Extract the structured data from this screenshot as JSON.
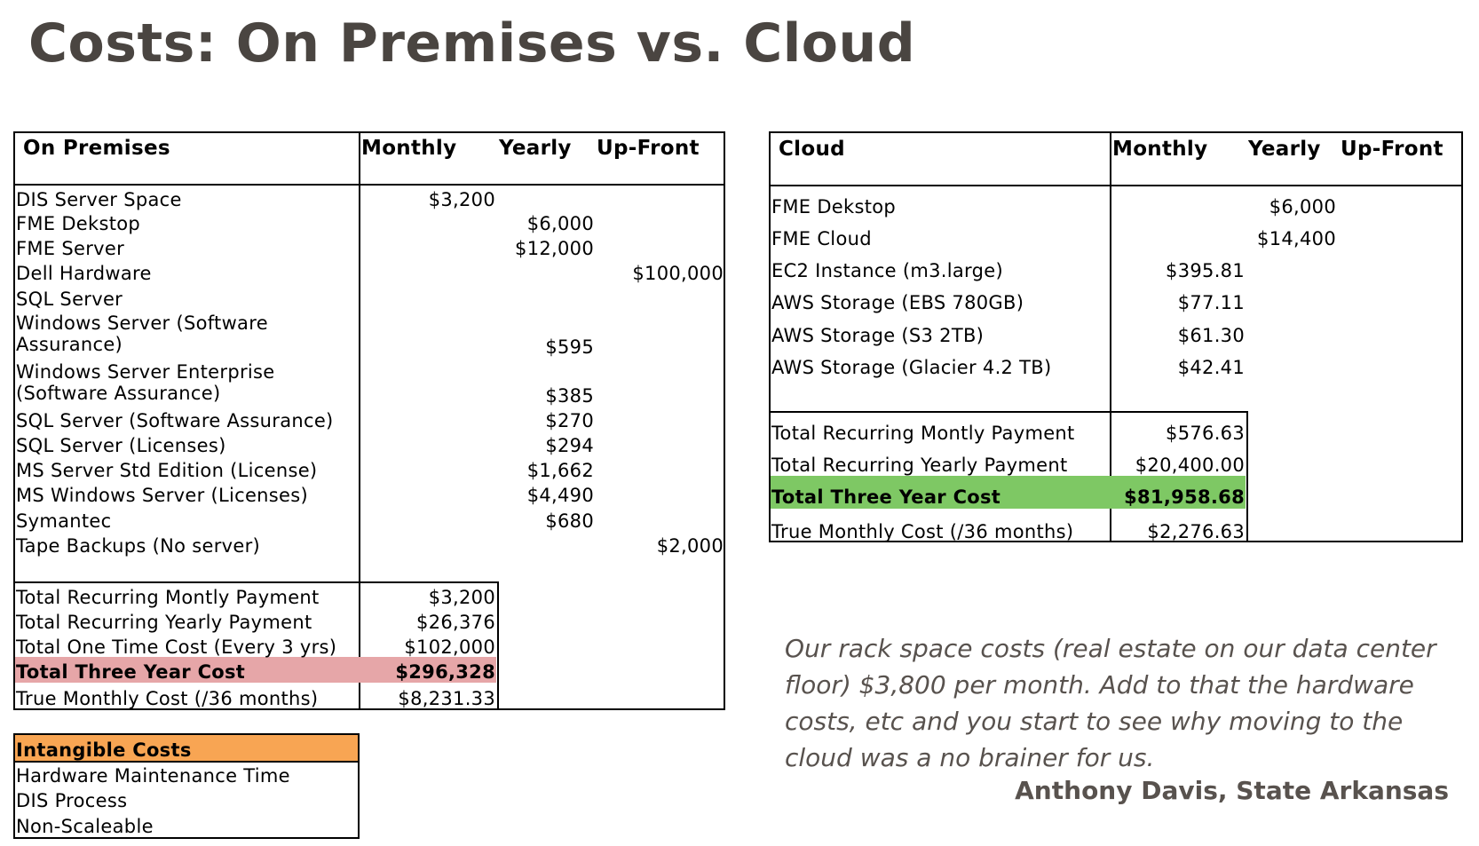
{
  "title": "Costs: On Premises vs. Cloud",
  "colors": {
    "title": "#4a4541",
    "onprem_total_highlight": "#e6a6a8",
    "cloud_total_highlight": "#7ec864",
    "intangible_header": "#f8a553",
    "quote_text": "#58524e"
  },
  "on_premises": {
    "headers": {
      "name": "On Premises",
      "monthly": "Monthly",
      "yearly": "Yearly",
      "upfront": "Up-Front"
    },
    "items": [
      {
        "label": "DIS Server Space",
        "monthly": "$3,200"
      },
      {
        "label": "FME Dekstop",
        "yearly": "$6,000"
      },
      {
        "label": "FME Server",
        "yearly": "$12,000"
      },
      {
        "label": "Dell Hardware",
        "upfront": "$100,000"
      },
      {
        "label": "SQL Server"
      },
      {
        "label_line1": "Windows Server (Software",
        "label_line2": "Assurance)",
        "yearly": "$595"
      },
      {
        "label_line1": "Windows Server Enterprise",
        "label_line2": "(Software Assurance)",
        "yearly": "$385"
      },
      {
        "label": "SQL Server (Software Assurance)",
        "yearly": "$270"
      },
      {
        "label": "SQL Server (Licenses)",
        "yearly": "$294"
      },
      {
        "label": "MS Server Std Edition (License)",
        "yearly": "$1,662"
      },
      {
        "label": "MS Windows Server (Licenses)",
        "yearly": "$4,490"
      },
      {
        "label": "Symantec",
        "yearly": "$680"
      },
      {
        "label": "Tape Backups (No server)",
        "upfront": "$2,000"
      }
    ],
    "totals": [
      {
        "label": "Total Recurring Montly Payment",
        "value": "$3,200"
      },
      {
        "label": "Total Recurring Yearly Payment",
        "value": "$26,376"
      },
      {
        "label": "Total One Time Cost (Every 3 yrs)",
        "value": "$102,000"
      },
      {
        "label": "Total Three Year Cost",
        "value": "$296,328"
      },
      {
        "label": "True Monthly Cost (/36 months)",
        "value": "$8,231.33"
      }
    ]
  },
  "intangible": {
    "header": "Intangible Costs",
    "items": [
      "Hardware Maintenance Time",
      "DIS Process",
      "Non-Scaleable"
    ]
  },
  "cloud": {
    "headers": {
      "name": "Cloud",
      "monthly": "Monthly",
      "yearly": "Yearly",
      "upfront": "Up-Front"
    },
    "items": [
      {
        "label": "FME Dekstop",
        "yearly": "$6,000"
      },
      {
        "label": "FME Cloud",
        "yearly": "$14,400"
      },
      {
        "label": "EC2 Instance (m3.large)",
        "monthly": "$395.81"
      },
      {
        "label": "AWS Storage (EBS 780GB)",
        "monthly": "$77.11"
      },
      {
        "label": "AWS Storage (S3 2TB)",
        "monthly": "$61.30"
      },
      {
        "label": "AWS Storage (Glacier 4.2 TB)",
        "monthly": "$42.41"
      }
    ],
    "totals": [
      {
        "label": "Total Recurring Montly Payment",
        "value": "$576.63"
      },
      {
        "label": "Total Recurring Yearly Payment",
        "value": "$20,400.00"
      },
      {
        "label": "Total Three Year Cost",
        "value": "$81,958.68"
      },
      {
        "label": "True Monthly Cost (/36 months)",
        "value": "$2,276.63"
      }
    ]
  },
  "quote": {
    "text": "Our rack space costs (real estate on our data center floor) $3,800 per month. Add to that the hardware costs, etc and you start to see why moving to the cloud was a no brainer for us.",
    "attribution": "Anthony Davis, State Arkansas"
  }
}
